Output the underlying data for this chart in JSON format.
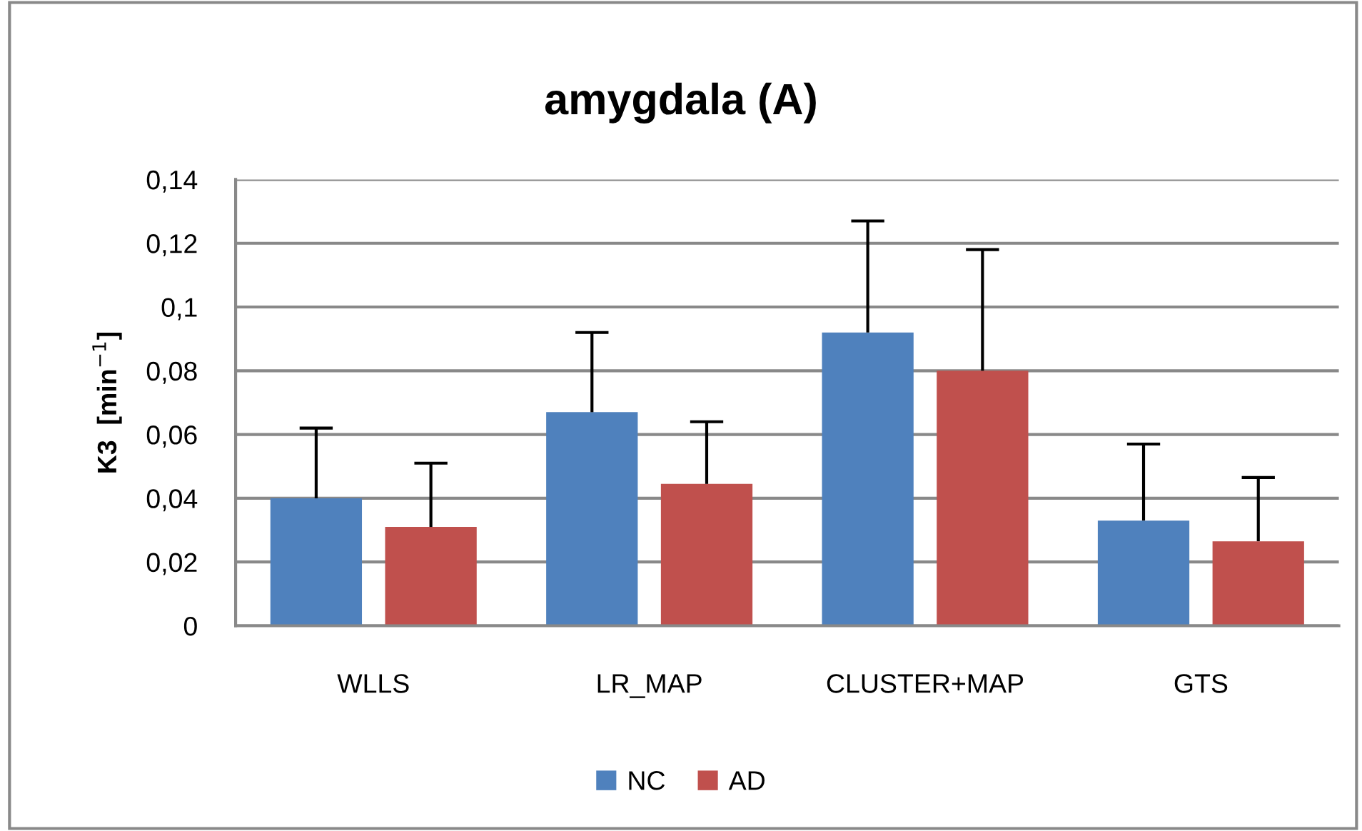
{
  "chart_data": {
    "type": "bar",
    "title": "amygdala (A)",
    "ylabel": "K3  [min$^{−1}$]",
    "categories": [
      "WLLS",
      "LR_MAP",
      "CLUSTER+MAP",
      "GTS"
    ],
    "series": [
      {
        "name": "NC",
        "color": "#4f81bd",
        "values": [
          0.04,
          0.067,
          0.092,
          0.033
        ],
        "errors": [
          [
            0.04,
            0.062
          ],
          [
            0.067,
            0.092
          ],
          [
            0.092,
            0.127
          ],
          [
            0.033,
            0.057
          ]
        ]
      },
      {
        "name": "AD",
        "color": "#c0504d",
        "values": [
          0.031,
          0.0445,
          0.08,
          0.0265
        ],
        "errors": [
          [
            0.031,
            0.051
          ],
          [
            0.0445,
            0.064
          ],
          [
            0.08,
            0.118
          ],
          [
            0.0265,
            0.0465
          ]
        ]
      }
    ],
    "ylim": [
      0,
      0.14
    ],
    "yticks": [
      0,
      {
        "value": 0.02,
        "label": "0,02"
      },
      {
        "value": 0.04,
        "label": "0,04"
      },
      {
        "value": 0.06,
        "label": "0,06"
      },
      {
        "value": 0.08,
        "label": "0,08"
      },
      {
        "value": 0.1,
        "label": "0,1"
      },
      {
        "value": 0.12,
        "label": "0,12"
      },
      {
        "value": 0.14,
        "label": "0,14"
      }
    ],
    "grid": "y",
    "legend": "bottom"
  }
}
